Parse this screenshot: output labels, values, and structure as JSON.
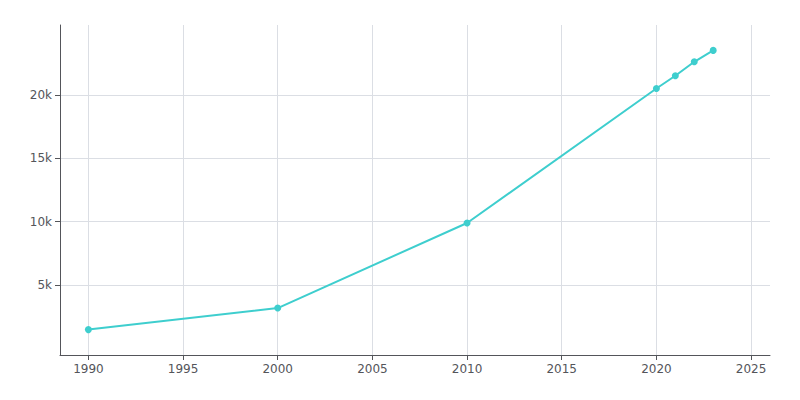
{
  "chart_data": {
    "type": "line",
    "x": [
      1990,
      2000,
      2010,
      2020,
      2021,
      2022,
      2023
    ],
    "values": [
      1500,
      3200,
      9900,
      20500,
      21500,
      22600,
      23500
    ],
    "color": "#3ECECE",
    "marker": "circle",
    "xlim": [
      1988.5,
      2026
    ],
    "ylim": [
      -500,
      25500
    ],
    "xticks": [
      1990,
      1995,
      2000,
      2005,
      2010,
      2015,
      2020,
      2025
    ],
    "yticks": [
      {
        "value": 5000,
        "label": "5k"
      },
      {
        "value": 10000,
        "label": "10k"
      },
      {
        "value": 15000,
        "label": "15k"
      },
      {
        "value": 20000,
        "label": "20k"
      }
    ],
    "grid": true
  }
}
